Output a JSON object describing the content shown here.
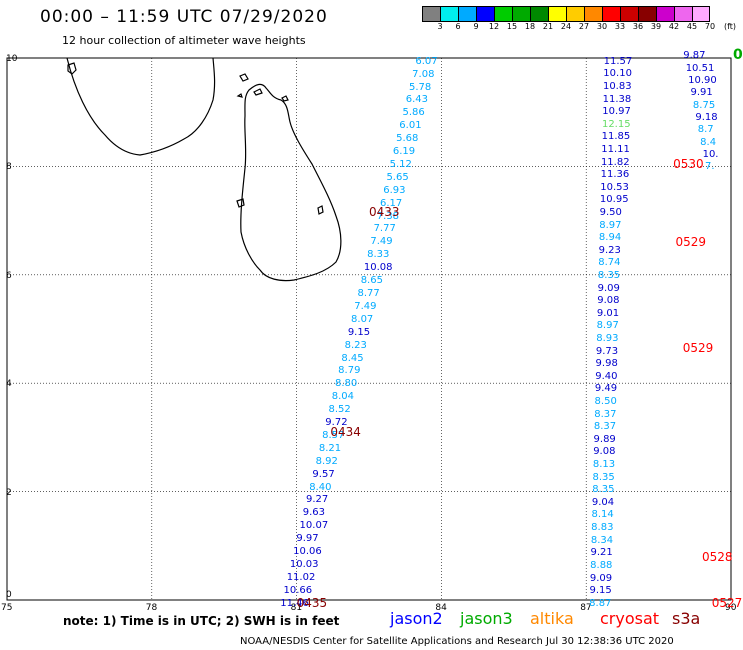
{
  "header": {
    "title": "00:00 – 11:59 UTC 07/29/2020",
    "subtitle": "12 hour collection of altimeter wave heights"
  },
  "color_scale": {
    "labels": [
      "3",
      "6",
      "9",
      "12",
      "15",
      "18",
      "21",
      "24",
      "27",
      "30",
      "33",
      "36",
      "39",
      "42",
      "45",
      "70",
      "(ft)"
    ],
    "colors": [
      "#808080",
      "#00eeee",
      "#00aaff",
      "#0000ff",
      "#00cc00",
      "#00aa00",
      "#008800",
      "#ffff00",
      "#ffcc00",
      "#ff8800",
      "#ff0000",
      "#cc0000",
      "#880000",
      "#cc00cc",
      "#ee66ee",
      "#ffaaff"
    ]
  },
  "axes": {
    "y_ticks": [
      "10",
      "8",
      "6",
      "4",
      "2",
      "0"
    ],
    "x_ticks": [
      "75",
      "78",
      "81",
      "84",
      "87",
      "90"
    ]
  },
  "legend": [
    {
      "name": "jason2",
      "color": "#0000ff"
    },
    {
      "name": "jason3",
      "color": "#00aa00"
    },
    {
      "name": "altika",
      "color": "#ff8800"
    },
    {
      "name": "cryosat",
      "color": "#ff0000"
    },
    {
      "name": "s3a",
      "color": "#880000"
    }
  ],
  "note": "note: 1) Time is in UTC; 2) SWH is in feet",
  "footer": "NOAA/NESDIS Center for Satellite Applications and Research   Jul 30 12:38:36 UTC 2020",
  "pass_labels": [
    {
      "text": "0433",
      "lon": 82.5,
      "lat": 7.15,
      "color": "#880000"
    },
    {
      "text": "0434",
      "lon": 81.7,
      "lat": 3.1,
      "color": "#880000"
    },
    {
      "text": "0435",
      "lon": 81.0,
      "lat": -0.05,
      "color": "#880000"
    },
    {
      "text": "0530",
      "lon": 88.8,
      "lat": 8.05,
      "color": "#ff0000"
    },
    {
      "text": "0529",
      "lon": 88.85,
      "lat": 6.6,
      "color": "#ff0000"
    },
    {
      "text": "0529",
      "lon": 89.0,
      "lat": 4.65,
      "color": "#ff0000"
    },
    {
      "text": "0528",
      "lon": 89.4,
      "lat": 0.8,
      "color": "#ff0000"
    },
    {
      "text": "0527",
      "lon": 89.6,
      "lat": -0.05,
      "color": "#ff0000"
    }
  ],
  "tracks": [
    {
      "name": "track-a",
      "lon_start": 84.0,
      "lon_end": 81.2,
      "lat_start": 9.95,
      "lat_end": -0.05,
      "values": [
        "6.07",
        "7.08",
        "5.78",
        "6.43",
        "5.86",
        "6.01",
        "5.68",
        "6.19",
        "5.12",
        "5.65",
        "6.93",
        "6.17",
        "7.38",
        "7.77",
        "7.49",
        "8.33",
        "10.08",
        "8.65",
        "8.77",
        "7.49",
        "8.07",
        "9.15",
        "8.23",
        "8.45",
        "8.79",
        "8.80",
        "8.04",
        "8.52",
        "9.72",
        "8.57",
        "8.21",
        "8.92",
        "9.57",
        "8.40",
        "9.27",
        "9.63",
        "10.07",
        "9.97",
        "10.06",
        "10.03",
        "11.02",
        "10.66",
        "11.46"
      ],
      "colors": [
        "c",
        "c",
        "c",
        "c",
        "c",
        "c",
        "c",
        "c",
        "c",
        "c",
        "c",
        "c",
        "c",
        "c",
        "c",
        "c",
        "b",
        "c",
        "c",
        "c",
        "c",
        "b",
        "c",
        "c",
        "c",
        "c",
        "c",
        "c",
        "b",
        "c",
        "c",
        "c",
        "b",
        "c",
        "b",
        "b",
        "b",
        "b",
        "b",
        "b",
        "b",
        "b",
        "b"
      ]
    },
    {
      "name": "track-b",
      "lon_start": 87.9,
      "lon_end": 87.6,
      "lat_start": 9.95,
      "lat_end": -0.05,
      "values": [
        "11.57",
        "10.10",
        "10.83",
        "11.38",
        "10.97",
        "12.15",
        "11.85",
        "11.11",
        "11.82",
        "11.36",
        "10.53",
        "10.95",
        "9.50",
        "8.97",
        "8.94",
        "9.23",
        "8.74",
        "8.35",
        "9.09",
        "9.08",
        "9.01",
        "8.97",
        "8.93",
        "9.73",
        "9.98",
        "9.40",
        "9.49",
        "8.50",
        "8.37",
        "8.37",
        "9.89",
        "9.08",
        "8.13",
        "8.35",
        "8.35",
        "9.04",
        "8.14",
        "8.83",
        "8.34",
        "9.21",
        "8.88",
        "9.09",
        "9.15",
        "8.87"
      ],
      "colors": [
        "b",
        "b",
        "b",
        "b",
        "b",
        "g",
        "b",
        "b",
        "b",
        "b",
        "b",
        "b",
        "b",
        "c",
        "c",
        "b",
        "c",
        "c",
        "b",
        "b",
        "b",
        "c",
        "c",
        "b",
        "b",
        "b",
        "b",
        "c",
        "c",
        "c",
        "b",
        "b",
        "c",
        "c",
        "c",
        "b",
        "c",
        "c",
        "c",
        "b",
        "c",
        "b",
        "b",
        "c"
      ]
    },
    {
      "name": "track-c",
      "lon_start": 89.55,
      "lon_end": 90.0,
      "lat_start": 10.05,
      "lat_end": 8.0,
      "values": [
        "9.87",
        "10.51",
        "10.90",
        "9.91",
        "8.75",
        "9.18",
        "8.7",
        "8.4",
        "10.",
        "7."
      ],
      "colors": [
        "b",
        "b",
        "b",
        "b",
        "c",
        "b",
        "c",
        "c",
        "b",
        "c"
      ]
    }
  ],
  "coast_fragment": {
    "text": "0",
    "color": "#00aa00"
  }
}
